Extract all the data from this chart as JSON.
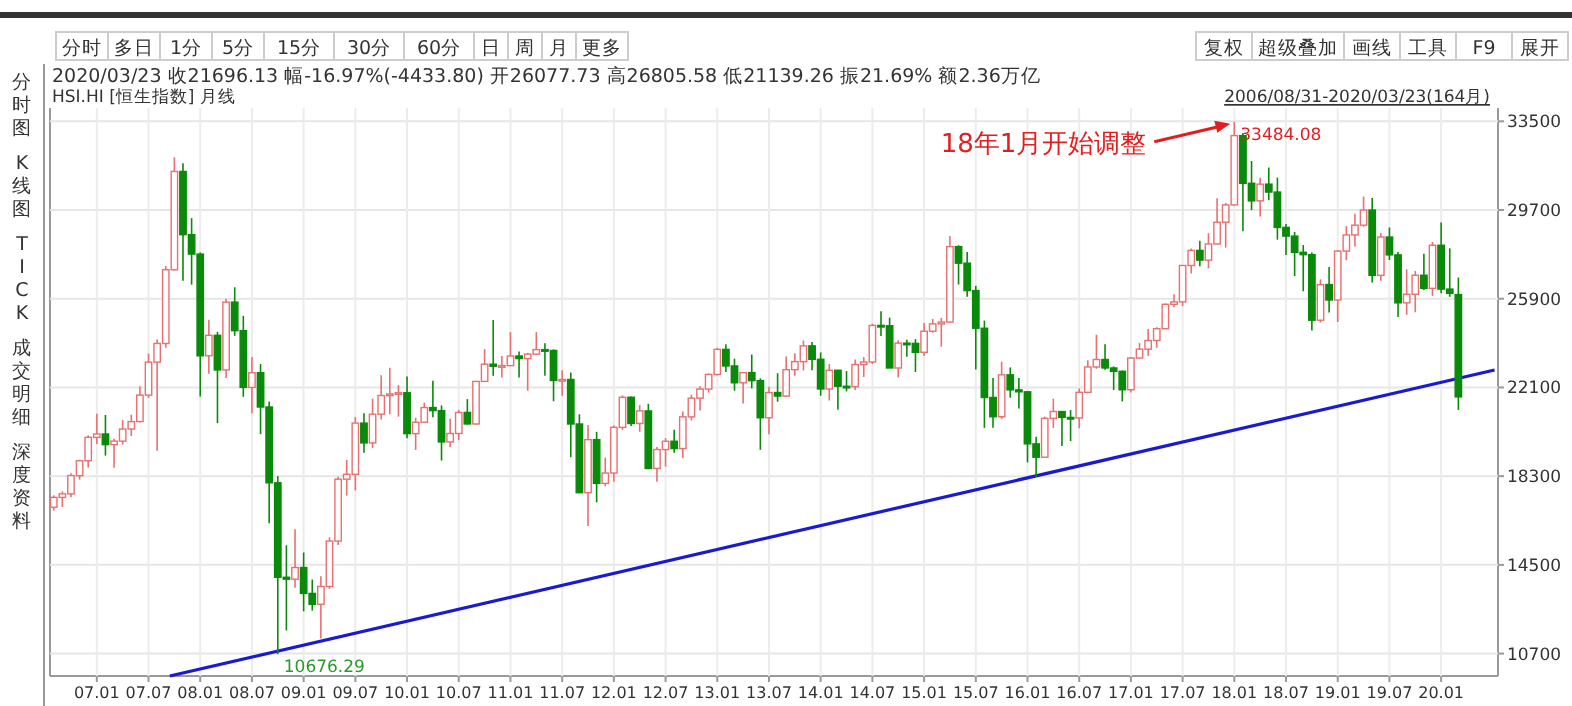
{
  "chart_data": {
    "type": "candlestick",
    "title": "HSI.HI [恒生指数] 月线",
    "subtitle": "2006/08/31-2020/03/23(164月)",
    "annotations": [
      "2020/03/23 收21696.13 幅-16.97%(-4433.80) 开26077.73 高26805.58 低21139.26 振21.69% 额2.36万亿",
      "分时 多日 1分 5分 15分 30分 60分 日 周 月 更多",
      "复权 超级叠加 画线 工具 F9 展开",
      "分时图",
      "K线图",
      "TICK",
      "成交明细",
      "深度资料",
      {
        "text": "18年1月开始调整",
        "x": "2018-01",
        "y": 33484.08
      },
      {
        "text": "33484.08",
        "x": "2018-01",
        "y": 33484.08
      },
      {
        "text": "10676.29",
        "x": "2008-10",
        "y": 10676.29
      }
    ],
    "xlim": [
      "2006-07-18",
      "2020-07-19"
    ],
    "ylim": [
      9740,
      34070
    ],
    "yticks": [
      10700,
      14500,
      18300,
      22100,
      25900,
      29700,
      33500
    ],
    "xticks": [
      {
        "value": "2007-01",
        "label": "07.01"
      },
      {
        "value": "2007-07",
        "label": "07.07"
      },
      {
        "value": "2008-01",
        "label": "08.01"
      },
      {
        "value": "2008-07",
        "label": "08.07"
      },
      {
        "value": "2009-01",
        "label": "09.01"
      },
      {
        "value": "2009-07",
        "label": "09.07"
      },
      {
        "value": "2010-01",
        "label": "10.01"
      },
      {
        "value": "2010-07",
        "label": "10.07"
      },
      {
        "value": "2011-01",
        "label": "11.01"
      },
      {
        "value": "2011-07",
        "label": "11.07"
      },
      {
        "value": "2012-01",
        "label": "12.01"
      },
      {
        "value": "2012-07",
        "label": "12.07"
      },
      {
        "value": "2013-01",
        "label": "13.01"
      },
      {
        "value": "2013-07",
        "label": "13.07"
      },
      {
        "value": "2014-01",
        "label": "14.01"
      },
      {
        "value": "2014-07",
        "label": "14.07"
      },
      {
        "value": "2015-01",
        "label": "15.01"
      },
      {
        "value": "2015-07",
        "label": "15.07"
      },
      {
        "value": "2016-01",
        "label": "16.01"
      },
      {
        "value": "2016-07",
        "label": "16.07"
      },
      {
        "value": "2017-01",
        "label": "17.01"
      },
      {
        "value": "2017-07",
        "label": "17.07"
      },
      {
        "value": "2018-01",
        "label": "18.01"
      },
      {
        "value": "2018-07",
        "label": "18.07"
      },
      {
        "value": "2019-01",
        "label": "19.01"
      },
      {
        "value": "2019-07",
        "label": "19.07"
      },
      {
        "value": "2020-01",
        "label": "20.01"
      }
    ],
    "grid": true,
    "series": [
      {
        "x": [
          "2006-08",
          "2006-09",
          "2006-10",
          "2006-11",
          "2006-12",
          "2007-01",
          "2007-02",
          "2007-03",
          "2007-04",
          "2007-05",
          "2007-06",
          "2007-07",
          "2007-08",
          "2007-09",
          "2007-10",
          "2007-11",
          "2007-12",
          "2008-01",
          "2008-02",
          "2008-03",
          "2008-04",
          "2008-05",
          "2008-06",
          "2008-07",
          "2008-08",
          "2008-09",
          "2008-10",
          "2008-11",
          "2008-12",
          "2009-01",
          "2009-02",
          "2009-03",
          "2009-04",
          "2009-05",
          "2009-06",
          "2009-07",
          "2009-08",
          "2009-09",
          "2009-10",
          "2009-11",
          "2009-12",
          "2010-01",
          "2010-02",
          "2010-03",
          "2010-04",
          "2010-05",
          "2010-06",
          "2010-07",
          "2010-08",
          "2010-09",
          "2010-10",
          "2010-11",
          "2010-12",
          "2011-01",
          "2011-02",
          "2011-03",
          "2011-04",
          "2011-05",
          "2011-06",
          "2011-07",
          "2011-08",
          "2011-09",
          "2011-10",
          "2011-11",
          "2011-12",
          "2012-01",
          "2012-02",
          "2012-03",
          "2012-04",
          "2012-05",
          "2012-06",
          "2012-07",
          "2012-08",
          "2012-09",
          "2012-10",
          "2012-11",
          "2012-12",
          "2013-01",
          "2013-02",
          "2013-03",
          "2013-04",
          "2013-05",
          "2013-06",
          "2013-07",
          "2013-08",
          "2013-09",
          "2013-10",
          "2013-11",
          "2013-12",
          "2014-01",
          "2014-02",
          "2014-03",
          "2014-04",
          "2014-05",
          "2014-06",
          "2014-07",
          "2014-08",
          "2014-09",
          "2014-10",
          "2014-11",
          "2014-12",
          "2015-01",
          "2015-02",
          "2015-03",
          "2015-04",
          "2015-05",
          "2015-06",
          "2015-07",
          "2015-08",
          "2015-09",
          "2015-10",
          "2015-11",
          "2015-12",
          "2016-01",
          "2016-02",
          "2016-03",
          "2016-04",
          "2016-05",
          "2016-06",
          "2016-07",
          "2016-08",
          "2016-09",
          "2016-10",
          "2016-11",
          "2016-12",
          "2017-01",
          "2017-02",
          "2017-03",
          "2017-04",
          "2017-05",
          "2017-06",
          "2017-07",
          "2017-08",
          "2017-09",
          "2017-10",
          "2017-11",
          "2017-12",
          "2018-01",
          "2018-02",
          "2018-03",
          "2018-04",
          "2018-05",
          "2018-06",
          "2018-07",
          "2018-08",
          "2018-09",
          "2018-10",
          "2018-11",
          "2018-12",
          "2019-01",
          "2019-02",
          "2019-03",
          "2019-04",
          "2019-05",
          "2019-06",
          "2019-07",
          "2019-08",
          "2019-09",
          "2019-10",
          "2019-11",
          "2019-12",
          "2020-01",
          "2020-02",
          "2020-03"
        ],
        "ohlc": [
          [
            16970,
            17480,
            16820,
            17392
          ],
          [
            17390,
            17650,
            16980,
            17543
          ],
          [
            17540,
            18420,
            17400,
            18324
          ],
          [
            18320,
            19000,
            18150,
            18960
          ],
          [
            18960,
            20050,
            18670,
            19965
          ],
          [
            19960,
            20970,
            19680,
            20106
          ],
          [
            20106,
            20920,
            19180,
            19652
          ],
          [
            19650,
            19900,
            18660,
            19801
          ],
          [
            19800,
            20700,
            19650,
            20318
          ],
          [
            20320,
            20930,
            20020,
            20635
          ],
          [
            20640,
            22150,
            20600,
            21773
          ],
          [
            21770,
            23550,
            21650,
            23185
          ],
          [
            23185,
            24150,
            19390,
            23984
          ],
          [
            23984,
            27300,
            23800,
            27143
          ],
          [
            27140,
            31958,
            27100,
            31352
          ],
          [
            31352,
            31700,
            26670,
            28643
          ],
          [
            28643,
            29350,
            26500,
            27813
          ],
          [
            27813,
            27880,
            21710,
            23456
          ],
          [
            23456,
            25000,
            22690,
            24332
          ],
          [
            24332,
            24480,
            20570,
            22849
          ],
          [
            22849,
            25900,
            22500,
            25755
          ],
          [
            25755,
            26390,
            24310,
            24533
          ],
          [
            24533,
            25170,
            21700,
            22102
          ],
          [
            22102,
            23400,
            21000,
            22731
          ],
          [
            22731,
            23100,
            20100,
            21262
          ],
          [
            21262,
            21500,
            16280,
            18016
          ],
          [
            18016,
            18300,
            10676.29,
            13969
          ],
          [
            13969,
            15340,
            11690,
            13888
          ],
          [
            13888,
            16030,
            13520,
            14387
          ],
          [
            14387,
            15030,
            12510,
            13278
          ],
          [
            13278,
            13870,
            12540,
            12812
          ],
          [
            12812,
            14010,
            11345,
            13576
          ],
          [
            13576,
            15680,
            13470,
            15521
          ],
          [
            15521,
            18270,
            15350,
            18171
          ],
          [
            18171,
            18990,
            17470,
            18379
          ],
          [
            18379,
            20830,
            17690,
            20573
          ],
          [
            20573,
            21000,
            19300,
            19724
          ],
          [
            19724,
            21620,
            19500,
            20955
          ],
          [
            20955,
            22620,
            20730,
            21753
          ],
          [
            21753,
            22940,
            20950,
            21822
          ],
          [
            21822,
            22200,
            20850,
            21873
          ],
          [
            21873,
            22570,
            19920,
            20122
          ],
          [
            20122,
            20800,
            19420,
            20609
          ],
          [
            20609,
            21450,
            20600,
            21239
          ],
          [
            21239,
            22390,
            20820,
            21108
          ],
          [
            21108,
            21330,
            18970,
            19765
          ],
          [
            19765,
            20760,
            19550,
            20129
          ],
          [
            20129,
            21140,
            19840,
            21029
          ],
          [
            21029,
            21600,
            20520,
            20536
          ],
          [
            20536,
            22360,
            20500,
            22359
          ],
          [
            22359,
            23740,
            22340,
            23096
          ],
          [
            23096,
            24990,
            22600,
            23008
          ],
          [
            23008,
            23450,
            22530,
            23035
          ],
          [
            23035,
            24470,
            23020,
            23447
          ],
          [
            23447,
            23640,
            22530,
            23338
          ],
          [
            23338,
            23580,
            21960,
            23528
          ],
          [
            23528,
            24470,
            23500,
            23720
          ],
          [
            23720,
            23990,
            22600,
            23684
          ],
          [
            23684,
            23730,
            21510,
            22398
          ],
          [
            22398,
            22840,
            21740,
            22440
          ],
          [
            22440,
            22740,
            19110,
            20535
          ],
          [
            20535,
            20950,
            17590,
            17592
          ],
          [
            17592,
            20490,
            16170,
            19864
          ],
          [
            19864,
            20200,
            17180,
            17989
          ],
          [
            17989,
            19090,
            17870,
            18434
          ],
          [
            18434,
            20470,
            18060,
            20390
          ],
          [
            20390,
            21760,
            20280,
            21680
          ],
          [
            21680,
            21710,
            20450,
            20556
          ],
          [
            20556,
            21340,
            20200,
            21094
          ],
          [
            21094,
            21400,
            18600,
            18630
          ],
          [
            18630,
            19550,
            18060,
            19441
          ],
          [
            19441,
            19930,
            18710,
            19796
          ],
          [
            19796,
            20290,
            19300,
            19482
          ],
          [
            19482,
            21070,
            19070,
            20840
          ],
          [
            20840,
            21790,
            20690,
            21642
          ],
          [
            21642,
            22150,
            21110,
            22030
          ],
          [
            22030,
            22700,
            21880,
            22657
          ],
          [
            22657,
            23800,
            22610,
            23730
          ],
          [
            23730,
            23950,
            22760,
            23020
          ],
          [
            23020,
            23330,
            21960,
            22300
          ],
          [
            22300,
            22760,
            21410,
            22737
          ],
          [
            22737,
            23510,
            22060,
            22392
          ],
          [
            22392,
            22490,
            19430,
            20803
          ],
          [
            20803,
            22130,
            20100,
            21883
          ],
          [
            21883,
            22710,
            21490,
            21731
          ],
          [
            21731,
            23430,
            21700,
            22860
          ],
          [
            22860,
            23570,
            22600,
            23206
          ],
          [
            23206,
            24110,
            22830,
            23881
          ],
          [
            23881,
            24050,
            22840,
            23306
          ],
          [
            23306,
            23600,
            21750,
            22035
          ],
          [
            22035,
            23100,
            21540,
            22837
          ],
          [
            22837,
            22840,
            21140,
            22151
          ],
          [
            22151,
            22800,
            21930,
            22134
          ],
          [
            22134,
            23300,
            21990,
            23082
          ],
          [
            23082,
            23400,
            22550,
            23191
          ],
          [
            23191,
            24830,
            23100,
            24757
          ],
          [
            24757,
            25360,
            24300,
            24742
          ],
          [
            24742,
            25090,
            22930,
            22933
          ],
          [
            22933,
            24120,
            22530,
            23998
          ],
          [
            23998,
            24140,
            23420,
            23987
          ],
          [
            23987,
            24170,
            22760,
            23605
          ],
          [
            23605,
            24860,
            23450,
            24507
          ],
          [
            24507,
            25030,
            24450,
            24823
          ],
          [
            24823,
            25080,
            23850,
            24901
          ],
          [
            24901,
            28590,
            24880,
            28133
          ],
          [
            28133,
            28190,
            26510,
            27424
          ],
          [
            27424,
            27900,
            25980,
            26250
          ],
          [
            26250,
            26450,
            22870,
            24636
          ],
          [
            24636,
            24960,
            20370,
            21671
          ],
          [
            21671,
            22500,
            20370,
            20846
          ],
          [
            20846,
            23200,
            20750,
            22640
          ],
          [
            22640,
            22960,
            21660,
            21996
          ],
          [
            21996,
            22500,
            21200,
            21914
          ],
          [
            21914,
            21940,
            18890,
            19683
          ],
          [
            19683,
            19990,
            18280,
            19112
          ],
          [
            19112,
            20850,
            19100,
            20777
          ],
          [
            20777,
            21620,
            20370,
            21067
          ],
          [
            21067,
            21070,
            19590,
            20815
          ],
          [
            20815,
            21130,
            19800,
            20794
          ],
          [
            20794,
            22050,
            20350,
            21891
          ],
          [
            21891,
            23260,
            21850,
            22977
          ],
          [
            22977,
            24360,
            22900,
            23297
          ],
          [
            23297,
            23950,
            22860,
            22935
          ],
          [
            22935,
            23000,
            21990,
            22790
          ],
          [
            22790,
            22830,
            21500,
            22001
          ],
          [
            22001,
            23400,
            21880,
            23361
          ],
          [
            23361,
            24000,
            23340,
            23741
          ],
          [
            23741,
            24600,
            23460,
            24112
          ],
          [
            24112,
            24680,
            23800,
            24615
          ],
          [
            24615,
            25700,
            24600,
            25661
          ],
          [
            25661,
            26090,
            25540,
            25765
          ],
          [
            25765,
            27330,
            25580,
            27324
          ],
          [
            27324,
            28050,
            26980,
            27970
          ],
          [
            27970,
            28380,
            27290,
            27554
          ],
          [
            27554,
            28710,
            27200,
            28246
          ],
          [
            28246,
            30200,
            28230,
            29177
          ],
          [
            29177,
            30000,
            28090,
            29919
          ],
          [
            29919,
            33484.08,
            29900,
            32887
          ],
          [
            32887,
            33000,
            28790,
            30845
          ],
          [
            30845,
            31800,
            29700,
            30093
          ],
          [
            30093,
            31080,
            29420,
            30808
          ],
          [
            30808,
            31520,
            30120,
            30469
          ],
          [
            30469,
            31090,
            28430,
            28955
          ],
          [
            28955,
            29100,
            27770,
            28583
          ],
          [
            28583,
            28760,
            26870,
            27889
          ],
          [
            27889,
            28200,
            26220,
            27789
          ],
          [
            27789,
            27880,
            24540,
            24980
          ],
          [
            24980,
            26730,
            24880,
            26507
          ],
          [
            26507,
            27260,
            25310,
            25846
          ],
          [
            25846,
            27990,
            24900,
            27942
          ],
          [
            27942,
            29010,
            27550,
            28633
          ],
          [
            28633,
            29540,
            28140,
            29051
          ],
          [
            29051,
            30280,
            28980,
            29699
          ],
          [
            29699,
            30220,
            26600,
            26901
          ],
          [
            26901,
            28720,
            26670,
            28543
          ],
          [
            28543,
            28950,
            27560,
            27778
          ],
          [
            27778,
            27900,
            25120,
            25725
          ],
          [
            25725,
            27160,
            25210,
            26092
          ],
          [
            26092,
            27090,
            25320,
            26907
          ],
          [
            26907,
            27830,
            26270,
            26346
          ],
          [
            26346,
            28330,
            26020,
            28190
          ],
          [
            28190,
            29170,
            26140,
            26313
          ],
          [
            26313,
            28060,
            25980,
            26130
          ],
          [
            26077.73,
            26805.58,
            21139.26,
            21696.13
          ]
        ]
      },
      {
        "type": "line",
        "x": [
          "2007-09-15",
          "2020-07-07"
        ],
        "values": [
          9740,
          22850
        ],
        "color": "#1a1ad0"
      }
    ]
  }
}
